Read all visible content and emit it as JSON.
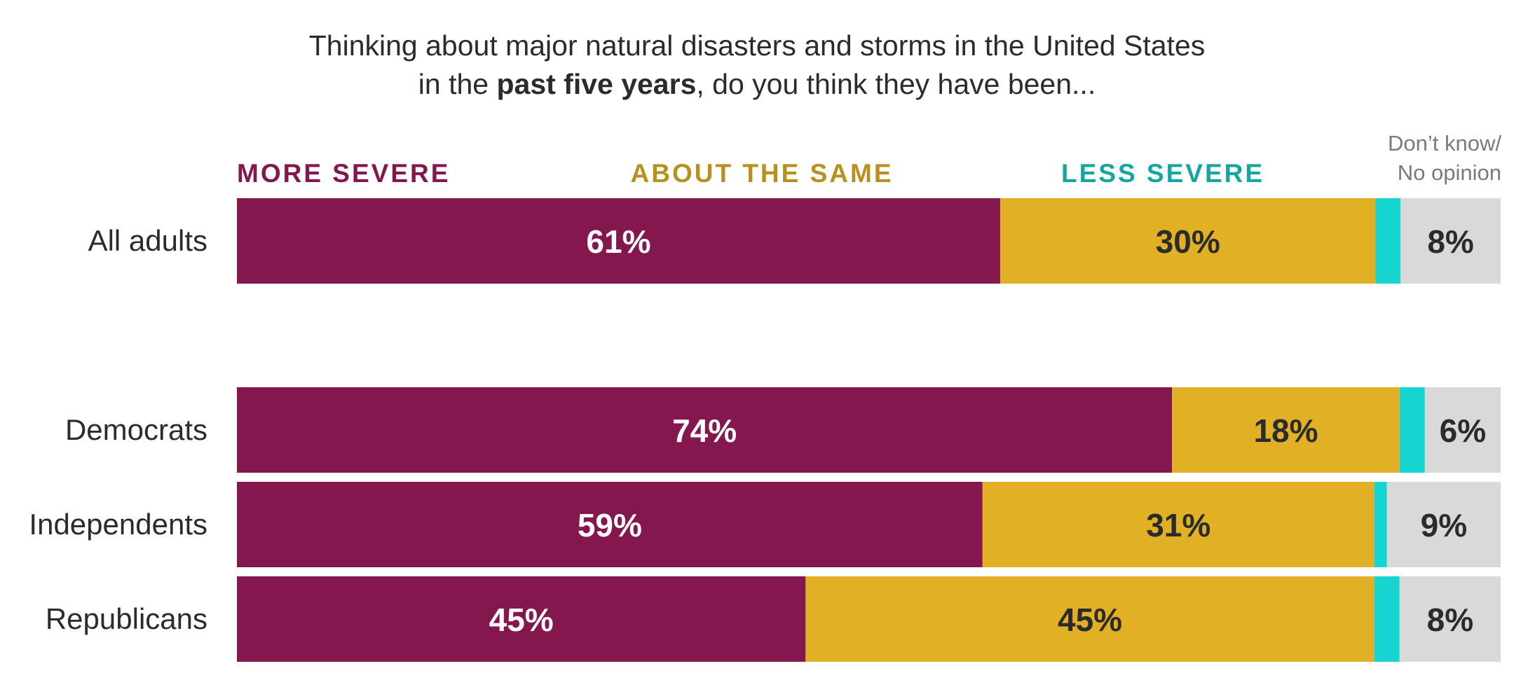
{
  "title": {
    "line1": "Thinking about major natural disasters and storms in the United States",
    "line2_prefix": "in the ",
    "line2_bold": "past five years",
    "line2_suffix": ", do you think they have been..."
  },
  "colors": {
    "more_severe": "#84174d",
    "about_same": "#e2b024",
    "less_severe": "#16d5d0",
    "dont_know": "#d9d9d9",
    "legend_more": "#84174d",
    "legend_same": "#b8901f",
    "legend_less": "#16a6a1",
    "legend_dk": "#7a7a7a"
  },
  "chart_data": {
    "type": "bar",
    "orientation": "horizontal",
    "stacked": true,
    "categories": [
      "All adults",
      "Democrats",
      "Independents",
      "Republicans"
    ],
    "series": [
      {
        "name": "MORE SEVERE",
        "values": [
          61,
          74,
          59,
          45
        ],
        "labels": [
          "61%",
          "74%",
          "59%",
          "45%"
        ]
      },
      {
        "name": "ABOUT THE SAME",
        "values": [
          30,
          18,
          31,
          45
        ],
        "labels": [
          "30%",
          "18%",
          "31%",
          "45%"
        ]
      },
      {
        "name": "LESS SEVERE",
        "values": [
          2,
          2,
          1,
          2
        ],
        "labels": [
          "",
          "",
          "",
          ""
        ]
      },
      {
        "name": "Don’t know/ No opinion",
        "values": [
          8,
          6,
          9,
          8
        ],
        "labels": [
          "8%",
          "6%",
          "9%",
          "8%"
        ]
      }
    ],
    "legend_dk_lines": [
      "Don’t know/",
      "No opinion"
    ],
    "xlim": [
      0,
      100
    ],
    "grid": false,
    "legend": "top"
  }
}
